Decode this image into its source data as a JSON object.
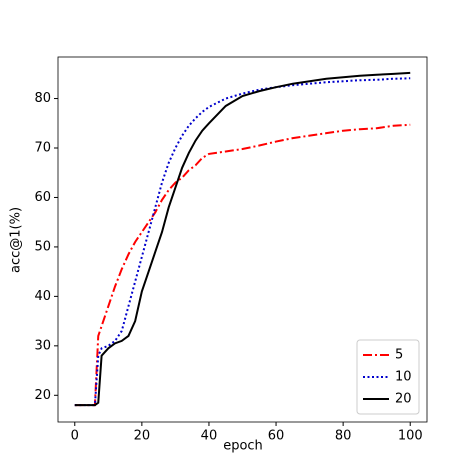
{
  "chart_data": {
    "type": "line",
    "x_label": "epoch",
    "y_label": "acc@1(%)",
    "x": [
      0,
      2,
      4,
      6,
      7,
      8,
      10,
      12,
      14,
      16,
      18,
      20,
      22,
      24,
      26,
      28,
      30,
      32,
      34,
      36,
      38,
      40,
      45,
      50,
      55,
      60,
      65,
      70,
      75,
      80,
      85,
      90,
      95,
      100
    ],
    "series": [
      {
        "name": "5",
        "color": "#ff0000",
        "dash": "dashdot",
        "values": [
          18,
          18,
          18,
          18,
          32,
          34,
          38,
          42,
          45.5,
          48.5,
          51,
          53,
          55,
          57,
          59.5,
          61.5,
          63,
          64,
          65.5,
          66.5,
          68,
          68.8,
          69.3,
          69.8,
          70.5,
          71.3,
          72,
          72.5,
          73,
          73.5,
          73.8,
          74,
          74.5,
          74.7
        ]
      },
      {
        "name": "10",
        "color": "#0000cc",
        "dash": "dotted",
        "values": [
          18,
          18,
          18,
          18,
          28,
          29.5,
          30,
          31,
          33,
          38,
          43,
          48,
          53,
          58,
          63,
          67,
          70,
          72.5,
          74.5,
          76,
          77.3,
          78.3,
          80,
          81,
          81.8,
          82.3,
          82.7,
          83,
          83.3,
          83.5,
          83.7,
          83.8,
          84,
          84.1
        ]
      },
      {
        "name": "20",
        "color": "#000000",
        "dash": "solid",
        "values": [
          18,
          18,
          18,
          18,
          18.5,
          28,
          29.5,
          30.5,
          31,
          32,
          35,
          41,
          45,
          49,
          53,
          58,
          62,
          66,
          69,
          71.5,
          73.5,
          75,
          78.5,
          80.5,
          81.5,
          82.3,
          83,
          83.5,
          84,
          84.3,
          84.6,
          84.8,
          85,
          85.2
        ]
      }
    ],
    "xlim": [
      -5,
      105
    ],
    "xticks": [
      0,
      20,
      40,
      60,
      80,
      100
    ],
    "ylim": [
      14.6,
      88.4
    ],
    "yticks": [
      20,
      30,
      40,
      50,
      60,
      70,
      80
    ],
    "legend": "lower right",
    "grid": false
  }
}
